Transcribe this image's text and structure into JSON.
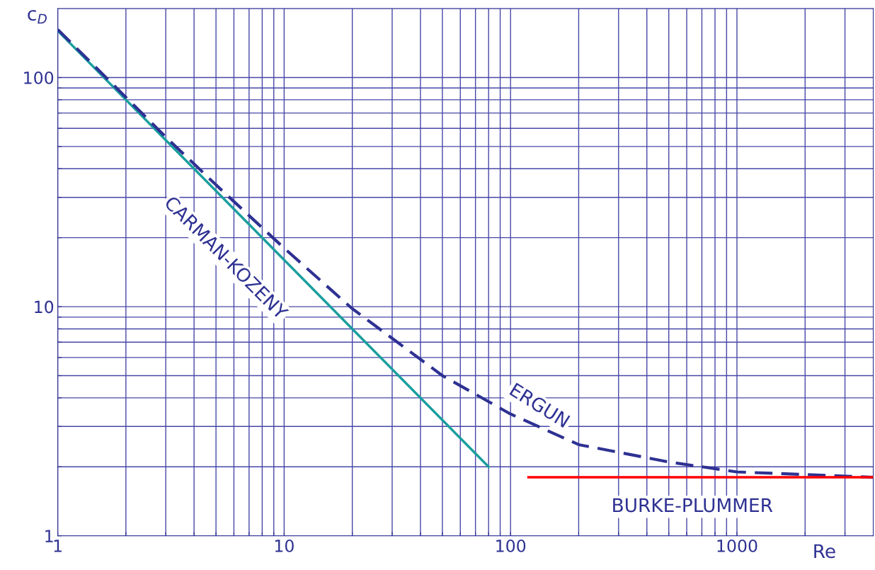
{
  "chart_data": {
    "type": "line",
    "xlabel": "Re",
    "ylabel": "c$_{D}$",
    "log": "xy",
    "grid": true,
    "legend": false,
    "xlim": [
      1,
      4000
    ],
    "ylim": [
      1,
      200
    ],
    "xticks": [
      1,
      {
        "value": 2,
        "label": null
      },
      {
        "value": 3,
        "label": null
      },
      {
        "value": 4,
        "label": null
      },
      {
        "value": 5,
        "label": null
      },
      {
        "value": 6,
        "label": null
      },
      {
        "value": 7,
        "label": null
      },
      {
        "value": 8,
        "label": null
      },
      {
        "value": 9,
        "label": null
      },
      10,
      {
        "value": 20,
        "label": null
      },
      {
        "value": 30,
        "label": null
      },
      {
        "value": 40,
        "label": null
      },
      {
        "value": 50,
        "label": null
      },
      {
        "value": 60,
        "label": null
      },
      {
        "value": 70,
        "label": null
      },
      {
        "value": 80,
        "label": null
      },
      {
        "value": 90,
        "label": null
      },
      100,
      {
        "value": 200,
        "label": null
      },
      {
        "value": 300,
        "label": null
      },
      {
        "value": 400,
        "label": null
      },
      {
        "value": 500,
        "label": null
      },
      {
        "value": 600,
        "label": null
      },
      {
        "value": 700,
        "label": null
      },
      {
        "value": 800,
        "label": null
      },
      {
        "value": 900,
        "label": null
      },
      1000,
      {
        "value": 2000,
        "label": null
      },
      {
        "value": 3000,
        "label": null
      }
    ],
    "yticks": [
      1,
      {
        "value": 2,
        "label": null
      },
      {
        "value": 3,
        "label": null
      },
      {
        "value": 4,
        "label": null
      },
      {
        "value": 5,
        "label": null
      },
      {
        "value": 6,
        "label": null
      },
      {
        "value": 7,
        "label": null
      },
      {
        "value": 8,
        "label": null
      },
      {
        "value": 9,
        "label": null
      },
      10,
      {
        "value": 20,
        "label": null
      },
      {
        "value": 30,
        "label": null
      },
      {
        "value": 40,
        "label": null
      },
      {
        "value": 50,
        "label": null
      },
      {
        "value": 60,
        "label": null
      },
      {
        "value": 70,
        "label": null
      },
      {
        "value": 80,
        "label": null
      },
      {
        "value": 90,
        "label": null
      },
      100
    ],
    "series": [
      {
        "color": "#1a9e9e",
        "line_style": "solid",
        "x": [
          1,
          80
        ],
        "values": [
          160,
          2
        ]
      },
      {
        "color": "#2e3192",
        "line_style": "dashed",
        "x": [
          1,
          2,
          3,
          5,
          10,
          20,
          50,
          100,
          200,
          500,
          1000,
          2000,
          4000
        ],
        "values": [
          162,
          82,
          55,
          34,
          18,
          9.8,
          5,
          3.4,
          2.5,
          2.1,
          1.9,
          1.85,
          1.8
        ]
      },
      {
        "color": "#ff0000",
        "line_style": "solid",
        "x": [
          120,
          4000
        ],
        "values": [
          1.8,
          1.8
        ]
      }
    ],
    "annotations": [
      "CARMAN-KOZENY",
      "ERGUN",
      "BURKE-PLUMMER"
    ]
  }
}
